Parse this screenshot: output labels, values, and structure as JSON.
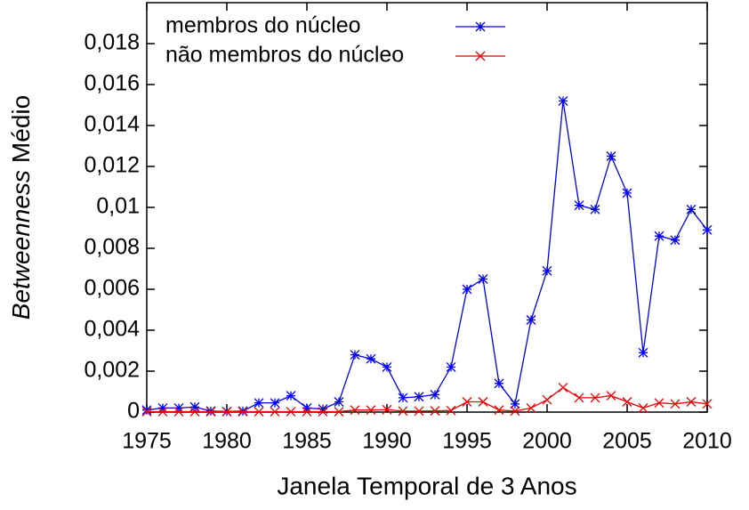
{
  "chart_data": {
    "type": "line",
    "xlabel": "Janela Temporal de 3 Anos",
    "ylabel": [
      "Betweenness",
      "Médio"
    ],
    "x": [
      1975,
      1976,
      1977,
      1978,
      1979,
      1980,
      1981,
      1982,
      1983,
      1984,
      1985,
      1986,
      1987,
      1988,
      1989,
      1990,
      1991,
      1992,
      1993,
      1994,
      1995,
      1996,
      1997,
      1998,
      1999,
      2000,
      2001,
      2002,
      2003,
      2004,
      2005,
      2006,
      2007,
      2008,
      2009,
      2010
    ],
    "series": [
      {
        "name": "membros do núcleo",
        "color": "#0000ee",
        "marker": "asterisk",
        "values": [
          0.0001,
          0.0002,
          0.0002,
          0.00025,
          5e-05,
          3e-05,
          5e-05,
          0.00045,
          0.00045,
          0.0008,
          0.0002,
          0.00015,
          0.0005,
          0.0028,
          0.0026,
          0.0022,
          0.0007,
          0.00075,
          0.00085,
          0.0022,
          0.006,
          0.0065,
          0.0014,
          0.0004,
          0.0045,
          0.0069,
          0.0152,
          0.0101,
          0.0099,
          0.0125,
          0.0107,
          0.0029,
          0.0086,
          0.0084,
          0.0099,
          0.0089
        ]
      },
      {
        "name": "não membros do núcleo",
        "color": "#ee0000",
        "marker": "cross",
        "values": [
          2e-05,
          2e-05,
          2e-05,
          2e-05,
          2e-05,
          2e-05,
          2e-05,
          2e-05,
          2e-05,
          2e-05,
          2e-05,
          2e-05,
          2e-05,
          0.0001,
          0.0001,
          0.00012,
          5e-05,
          5e-05,
          6e-05,
          8e-05,
          0.0005,
          0.0005,
          0.0001,
          5e-05,
          0.0002,
          0.0006,
          0.0012,
          0.0007,
          0.0007,
          0.0008,
          0.0005,
          0.0002,
          0.00045,
          0.0004,
          0.0005,
          0.0004
        ]
      }
    ],
    "xlim": [
      1975,
      2010
    ],
    "xticks": [
      1975,
      1980,
      1985,
      1990,
      1995,
      2000,
      2005,
      2010
    ],
    "ylim": [
      0,
      0.02
    ],
    "yticks": [
      0,
      {
        "value": 0.002,
        "label": "0,002"
      },
      {
        "value": 0.004,
        "label": "0,004"
      },
      {
        "value": 0.006,
        "label": "0,006"
      },
      {
        "value": 0.008,
        "label": "0,008"
      },
      {
        "value": 0.01,
        "label": "0,01"
      },
      {
        "value": 0.012,
        "label": "0,012"
      },
      {
        "value": 0.014,
        "label": "0,014"
      },
      {
        "value": 0.016,
        "label": "0,016"
      },
      {
        "value": 0.018,
        "label": "0,018"
      }
    ],
    "legend": "top-left"
  }
}
